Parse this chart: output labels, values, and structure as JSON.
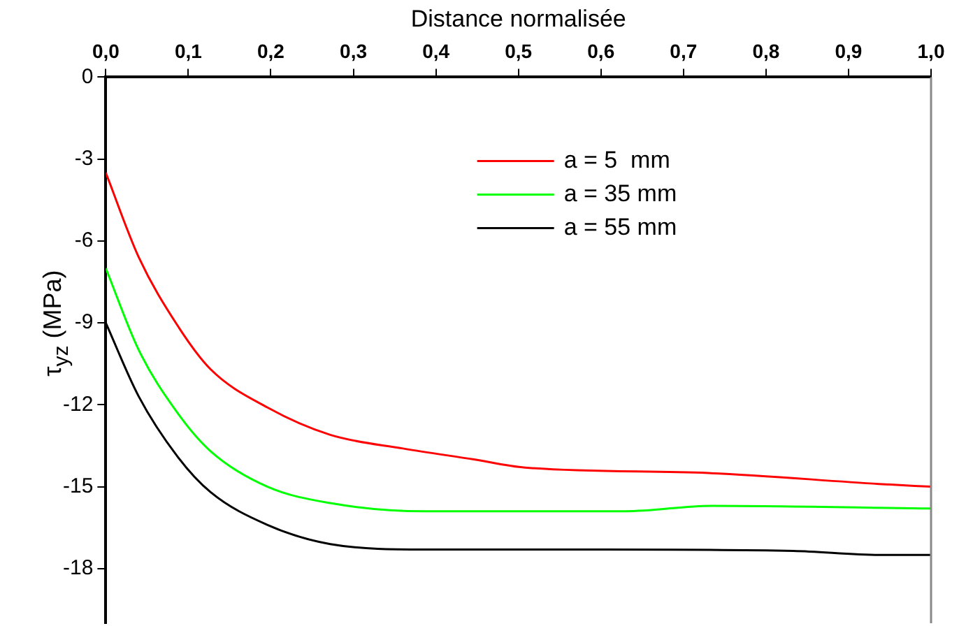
{
  "chart_data": {
    "type": "line",
    "xlabel": "Distance normalisée",
    "ylabel": "τ$_{yz}$ (MPa)",
    "xlim": [
      0,
      1
    ],
    "xticks": [
      {
        "value": 0,
        "label": "0,0"
      },
      {
        "value": 0.1,
        "label": "0,1"
      },
      {
        "value": 0.2,
        "label": "0,2"
      },
      {
        "value": 0.3,
        "label": "0,3"
      },
      {
        "value": 0.4,
        "label": "0,4"
      },
      {
        "value": 0.5,
        "label": "0,5"
      },
      {
        "value": 0.6,
        "label": "0,6"
      },
      {
        "value": 0.7,
        "label": "0,7"
      },
      {
        "value": 0.8,
        "label": "0,8"
      },
      {
        "value": 0.9,
        "label": "0,9"
      },
      {
        "value": 1,
        "label": "1,0"
      }
    ],
    "ylim": [
      -20,
      0
    ],
    "yticks": [
      0,
      -3,
      -6,
      -9,
      -12,
      -15,
      -18
    ],
    "grid": false,
    "legend": "top right",
    "marker": "none",
    "line_style": "solid",
    "series": [
      {
        "name": "a = 5  mm",
        "color": "#ff0000",
        "x": [
          0,
          0.04,
          0.087,
          0.127,
          0.196,
          0.272,
          0.36,
          0.446,
          0.508,
          0.73,
          0.937,
          1
        ],
        "values": [
          -3.5,
          -6.6,
          -9.1,
          -10.7,
          -12.1,
          -13.1,
          -13.6,
          -14.0,
          -14.3,
          -14.5,
          -14.9,
          -15.0
        ]
      },
      {
        "name": "a = 35 mm",
        "color": "#00ff00",
        "x": [
          0,
          0.04,
          0.087,
          0.127,
          0.196,
          0.272,
          0.387,
          0.503,
          0.63,
          0.734,
          1
        ],
        "values": [
          -7.0,
          -10.0,
          -12.3,
          -13.7,
          -15.0,
          -15.6,
          -15.9,
          -15.9,
          -15.9,
          -15.7,
          -15.8
        ]
      },
      {
        "name": "a = 55 mm",
        "color": "#000000",
        "x": [
          0,
          0.04,
          0.087,
          0.127,
          0.196,
          0.272,
          0.387,
          0.602,
          0.833,
          0.937,
          1
        ],
        "values": [
          -9.0,
          -11.7,
          -13.9,
          -15.2,
          -16.4,
          -17.1,
          -17.3,
          -17.3,
          -17.35,
          -17.5,
          -17.5
        ]
      }
    ]
  }
}
